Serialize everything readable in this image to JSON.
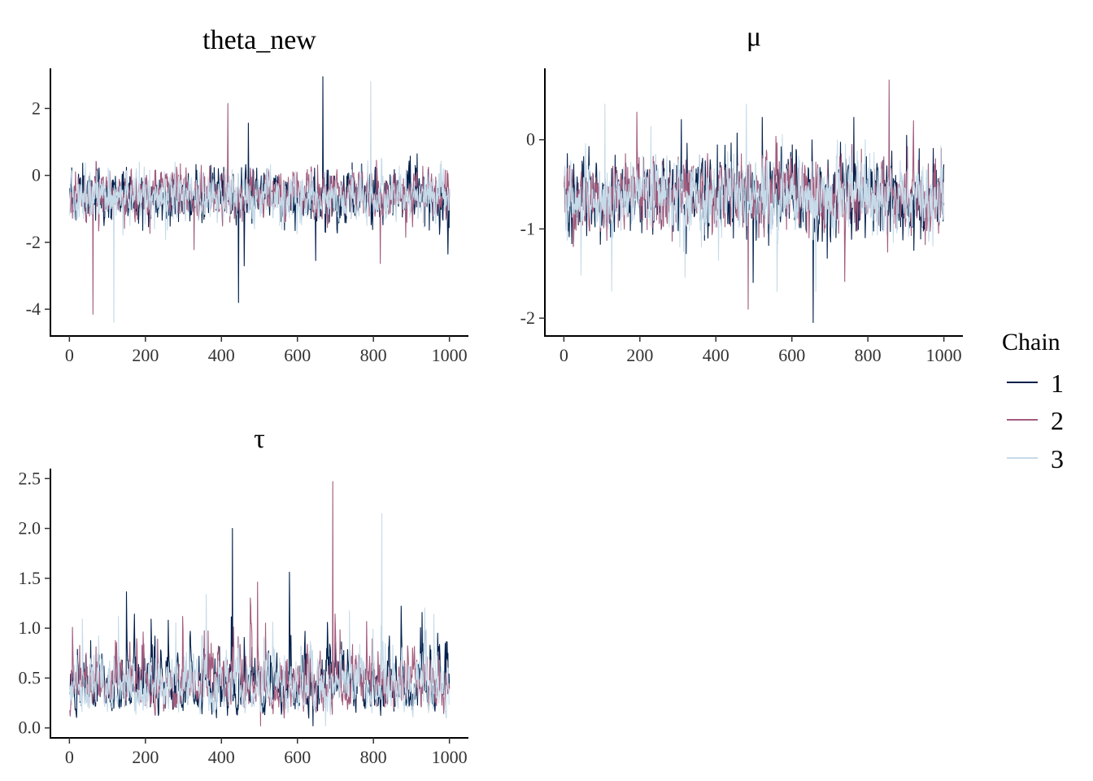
{
  "legend": {
    "title": "Chain",
    "entries": [
      {
        "label": "1",
        "color": "#011f4b"
      },
      {
        "label": "2",
        "color": "#a25c7e"
      },
      {
        "label": "3",
        "color": "#c6dbe9"
      }
    ],
    "placement": "right"
  },
  "chart_data": [
    {
      "type": "line",
      "title": "theta_new",
      "xlabel": "",
      "ylabel": "",
      "xlim": [
        -50,
        1050
      ],
      "ylim": [
        -4.8,
        3.2
      ],
      "xticks": [
        0,
        200,
        400,
        600,
        800,
        1000
      ],
      "xtick_labels": [
        "0",
        "200",
        "400",
        "600",
        "800",
        "1000"
      ],
      "yticks": [
        -4,
        -2,
        0,
        2
      ],
      "ytick_labels": [
        "-4",
        "-2",
        "0",
        "2"
      ],
      "grid": false,
      "iterations": 1000,
      "series": [
        {
          "name": "1",
          "color": "#011f4b",
          "center": -0.62,
          "spread": 0.55,
          "min": -3.8,
          "max": 2.95
        },
        {
          "name": "2",
          "color": "#a25c7e",
          "center": -0.6,
          "spread": 0.55,
          "min": -4.15,
          "max": 2.15
        },
        {
          "name": "3",
          "color": "#c6dbe9",
          "center": -0.62,
          "spread": 0.55,
          "min": -4.4,
          "max": 2.8
        }
      ]
    },
    {
      "type": "line",
      "title": "μ",
      "xlabel": "",
      "ylabel": "",
      "xlim": [
        -50,
        1050
      ],
      "ylim": [
        -2.2,
        0.8
      ],
      "xticks": [
        0,
        200,
        400,
        600,
        800,
        1000
      ],
      "xtick_labels": [
        "0",
        "200",
        "400",
        "600",
        "800",
        "1000"
      ],
      "yticks": [
        -2,
        -1,
        0
      ],
      "ytick_labels": [
        "-2",
        "-1",
        "0"
      ],
      "grid": false,
      "iterations": 1000,
      "series": [
        {
          "name": "1",
          "color": "#011f4b",
          "center": -0.62,
          "spread": 0.3,
          "min": -2.05,
          "max": 0.25
        },
        {
          "name": "2",
          "color": "#a25c7e",
          "center": -0.62,
          "spread": 0.3,
          "min": -1.9,
          "max": 0.67
        },
        {
          "name": "3",
          "color": "#c6dbe9",
          "center": -0.62,
          "spread": 0.3,
          "min": -1.7,
          "max": 0.4
        }
      ]
    },
    {
      "type": "line",
      "title": "τ",
      "xlabel": "",
      "ylabel": "",
      "xlim": [
        -50,
        1050
      ],
      "ylim": [
        -0.1,
        2.6
      ],
      "xticks": [
        0,
        200,
        400,
        600,
        800,
        1000
      ],
      "xtick_labels": [
        "0",
        "200",
        "400",
        "600",
        "800",
        "1000"
      ],
      "yticks": [
        0.0,
        0.5,
        1.0,
        1.5,
        2.0,
        2.5
      ],
      "ytick_labels": [
        "0.0",
        "0.5",
        "1.0",
        "1.5",
        "2.0",
        "2.5"
      ],
      "grid": false,
      "iterations": 1000,
      "series": [
        {
          "name": "1",
          "color": "#011f4b",
          "center": 0.4,
          "spread": 0.35,
          "min": 0.02,
          "max": 2.0
        },
        {
          "name": "2",
          "color": "#a25c7e",
          "center": 0.4,
          "spread": 0.35,
          "min": 0.02,
          "max": 2.47
        },
        {
          "name": "3",
          "color": "#c6dbe9",
          "center": 0.38,
          "spread": 0.33,
          "min": 0.02,
          "max": 2.15
        }
      ]
    }
  ]
}
